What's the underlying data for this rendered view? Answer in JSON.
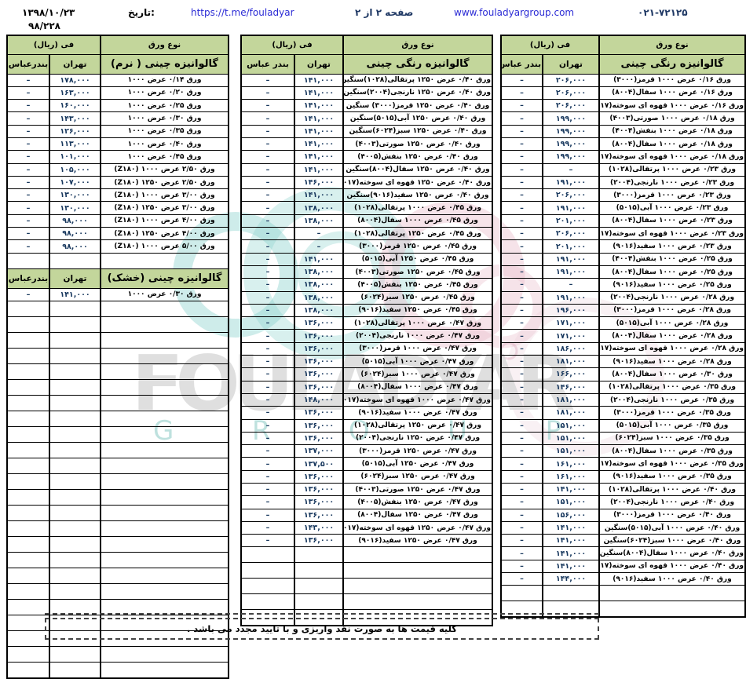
{
  "colors": {
    "header_green": "#c3d69b",
    "link_blue": "#2b2bd5",
    "navy": "#1f3864",
    "price_navy": "#17375d",
    "watermark_teal": "#7fccc7",
    "watermark_pink": "#eabccb",
    "watermark_gray": "#d8d8d8"
  },
  "header": {
    "date_value": "۱۳۹۸/۱۰/۲۳",
    "date_label": "تاریخ:",
    "doc_number": "۹۸/۲۲۸",
    "telegram_url": "https://t.me/fouladyar",
    "page_label": "صفحه ۲ از ۲",
    "website_url": "www.fouladyargroup.com",
    "phone": "۰۲۱-۷۲۱۲۵"
  },
  "watermark": {
    "brand": "FOULADYAR",
    "sub": "G R O U P"
  },
  "columns": {
    "type": "نوع ورق",
    "price": "فی (ریال)"
  },
  "footer": {
    "note": "کلیه قیمت ها به صورت نقد واریزی و با تایید مجدد می باشد ."
  },
  "tables": {
    "right": {
      "trailing_empty": 2,
      "rows": [
        {
          "t": "sec",
          "label": "گالوانیزه رنگی چینی",
          "teh": "تهران",
          "ban": "بندر عباس"
        },
        {
          "t": "d",
          "n": "ورق ۰/۱۶ عرض ۱۰۰۰ قرمز(۳۰۰۰)",
          "p": "۲۰۶,۰۰۰",
          "b": "–"
        },
        {
          "t": "d",
          "n": "ورق ۰/۱۶ عرض ۱۰۰۰ سفال(۸۰۰۴)",
          "p": "۲۰۶,۰۰۰",
          "b": "–"
        },
        {
          "t": "d",
          "n": "ورق ۰/۱۶ عرض ۱۰۰۰ قهوه ای سوخته(۸۰۱۷)",
          "p": "۲۰۶,۰۰۰",
          "b": "–"
        },
        {
          "t": "d",
          "n": "ورق ۰/۱۸ عرض ۱۰۰۰ صورتی(۴۰۰۳)",
          "p": "۱۹۹,۰۰۰",
          "b": "–"
        },
        {
          "t": "d",
          "n": "ورق ۰/۱۸ عرض ۱۰۰۰ بنفش(۴۰۰۴)",
          "p": "۱۹۹,۰۰۰",
          "b": "–"
        },
        {
          "t": "d",
          "n": "ورق ۰/۱۸ عرض ۱۰۰۰ سفال(۸۰۰۴)",
          "p": "۱۹۹,۰۰۰",
          "b": "–"
        },
        {
          "t": "d",
          "n": "ورق ۰/۱۸ عرض ۱۰۰۰ قهوه ای سوخته(۸۰۱۷)",
          "p": "۱۹۹,۰۰۰",
          "b": "–"
        },
        {
          "t": "d",
          "n": "ورق ۰/۲۳ عرض ۱۰۰۰ پرتقالی(۱۰۲۸)",
          "p": "–",
          "b": "–"
        },
        {
          "t": "d",
          "n": "ورق ۰/۲۳ عرض ۱۰۰۰ نارنجی(۲۰۰۴)",
          "p": "۱۹۱,۰۰۰",
          "b": "–"
        },
        {
          "t": "d",
          "n": "ورق ۰/۲۳ عرض ۱۰۰۰ قرمز(۳۰۰۰)",
          "p": "۲۰۶,۰۰۰",
          "b": "–"
        },
        {
          "t": "d",
          "n": "ورق ۰/۲۳ عرض ۱۰۰۰ آبی(۵۰۱۵)",
          "p": "۱۹۱,۰۰۰",
          "b": "–"
        },
        {
          "t": "d",
          "n": "ورق ۰/۲۳ عرض ۱۰۰۰ سفال(۸۰۰۴)",
          "p": "۲۰۱,۰۰۰",
          "b": "–"
        },
        {
          "t": "d",
          "n": "ورق ۰/۲۳ عرض ۱۰۰۰ قهوه ای سوخته(۸۰۱۷)",
          "p": "۲۰۶,۰۰۰",
          "b": "–"
        },
        {
          "t": "d",
          "n": "ورق ۰/۲۳ عرض ۱۰۰۰ سفید(۹۰۱۶)",
          "p": "۲۰۱,۰۰۰",
          "b": "–"
        },
        {
          "t": "d",
          "n": "ورق ۰/۲۵ عرض ۱۰۰۰ بنفش(۴۰۰۴)",
          "p": "۱۹۱,۰۰۰",
          "b": "–"
        },
        {
          "t": "d",
          "n": "ورق ۰/۲۵ عرض ۱۰۰۰ سفال(۸۰۰۴)",
          "p": "۱۹۱,۰۰۰",
          "b": "–"
        },
        {
          "t": "d",
          "n": "ورق ۰/۲۵ عرض ۱۰۰۰ سفید(۹۰۱۶)",
          "p": "–",
          "b": "–"
        },
        {
          "t": "d",
          "n": "ورق ۰/۲۸ عرض ۱۰۰۰ نارنجی(۲۰۰۴)",
          "p": "۱۹۱,۰۰۰",
          "b": "–"
        },
        {
          "t": "d",
          "n": "ورق ۰/۲۸ عرض ۱۰۰۰ قرمز(۳۰۰۰)",
          "p": "۱۹۶,۰۰۰",
          "b": "–"
        },
        {
          "t": "d",
          "n": "ورق ۰/۲۸ عرض ۱۰۰۰ آبی(۵۰۱۵)",
          "p": "۱۷۱,۰۰۰",
          "b": "–"
        },
        {
          "t": "d",
          "n": "ورق ۰/۲۸ عرض ۱۰۰۰ سفال(۸۰۰۴)",
          "p": "۱۷۱,۰۰۰",
          "b": "–"
        },
        {
          "t": "d",
          "n": "ورق ۰/۲۸ عرض ۱۰۰۰ قهوه ای سوخته(۸۰۱۷)",
          "p": "۱۸۶,۰۰۰",
          "b": "–"
        },
        {
          "t": "d",
          "n": "ورق ۰/۲۸ عرض ۱۰۰۰ سفید(۹۰۱۶)",
          "p": "۱۸۱,۰۰۰",
          "b": "–"
        },
        {
          "t": "d",
          "n": "ورق ۰/۳۰ عرض ۱۰۰۰ سفال(۸۰۰۴)",
          "p": "۱۶۶,۰۰۰",
          "b": "–"
        },
        {
          "t": "d",
          "n": "ورق ۰/۳۵ عرض ۱۰۰۰ پرتقالی(۱۰۲۸)",
          "p": "۱۴۶,۰۰۰",
          "b": "–"
        },
        {
          "t": "d",
          "n": "ورق ۰/۳۵ عرض ۱۰۰۰ نارنجی(۲۰۰۴)",
          "p": "۱۸۱,۰۰۰",
          "b": "–"
        },
        {
          "t": "d",
          "n": "ورق ۰/۳۵ عرض ۱۰۰۰ قرمز(۳۰۰۰)",
          "p": "۱۸۱,۰۰۰",
          "b": "–"
        },
        {
          "t": "d",
          "n": "ورق ۰/۳۵ عرض ۱۰۰۰ آبی(۵۰۱۵)",
          "p": "۱۵۱,۰۰۰",
          "b": "–"
        },
        {
          "t": "d",
          "n": "ورق ۰/۳۵ عرض ۱۰۰۰ سبز(۶۰۲۴)",
          "p": "۱۵۱,۰۰۰",
          "b": "–"
        },
        {
          "t": "d",
          "n": "ورق ۰/۳۵ عرض ۱۰۰۰ سفال(۸۰۰۴)",
          "p": "۱۵۱,۰۰۰",
          "b": "–"
        },
        {
          "t": "d",
          "n": "ورق ۰/۳۵ عرض ۱۰۰۰ قهوه ای سوخته(۸۰۱۷)",
          "p": "۱۶۱,۰۰۰",
          "b": "–"
        },
        {
          "t": "d",
          "n": "ورق ۰/۳۵ عرض ۱۰۰۰ سفید(۹۰۱۶)",
          "p": "۱۶۱,۰۰۰",
          "b": "–"
        },
        {
          "t": "d",
          "n": "ورق ۰/۴۰ عرض ۱۰۰۰ پرتقالی(۱۰۲۸)",
          "p": "۱۴۱,۰۰۰",
          "b": "–"
        },
        {
          "t": "d",
          "n": "ورق ۰/۴۰ عرض ۱۰۰۰ نارنجی(۲۰۰۴)",
          "p": "۱۵۱,۰۰۰",
          "b": "–"
        },
        {
          "t": "d",
          "n": "ورق ۰/۴۰ عرض ۱۰۰۰ قرمز(۳۰۰۰)",
          "p": "۱۵۶,۰۰۰",
          "b": "–"
        },
        {
          "t": "d",
          "n": "ورق ۰/۴۰ عرض ۱۰۰۰ آبی(۵۰۱۵)سنگین",
          "p": "۱۴۱,۰۰۰",
          "b": "–"
        },
        {
          "t": "d",
          "n": "ورق ۰/۴۰ عرض ۱۰۰۰ سبز(۶۰۲۴)سنگین",
          "p": "۱۴۱,۰۰۰",
          "b": "–"
        },
        {
          "t": "d",
          "n": "ورق ۰/۴۰ عرض ۱۰۰۰ سفال(۸۰۰۴)سنگین",
          "p": "۱۴۱,۰۰۰",
          "b": "–"
        },
        {
          "t": "d",
          "n": "ورق ۰/۴۰ عرض ۱۰۰۰ قهوه ای سوخته(۸۰۱۷)",
          "p": "۱۴۱,۰۰۰",
          "b": "–"
        },
        {
          "t": "d",
          "n": "ورق ۰/۴۰ عرض ۱۰۰۰ سفید(۹۰۱۶)",
          "p": "۱۴۴,۰۰۰",
          "b": "–"
        }
      ]
    },
    "middle": {
      "trailing_empty": 5,
      "rows": [
        {
          "t": "sec",
          "label": "گالوانیزه رنگی چینی",
          "teh": "تهران",
          "ban": "بندر عباس"
        },
        {
          "t": "d",
          "n": "ورق ۰/۴۰ عرض ۱۲۵۰ پرتقالی(۱۰۲۸)سنگین",
          "p": "۱۴۱,۰۰۰",
          "b": "–"
        },
        {
          "t": "d",
          "n": "ورق ۰/۴۰ عرض ۱۲۵۰ نارنجی(۲۰۰۴)سنگین",
          "p": "۱۴۱,۰۰۰",
          "b": "–"
        },
        {
          "t": "d",
          "n": "ورق ۰/۴۰ عرض ۱۲۵۰ قرمز(۳۰۰۰) سنگین",
          "p": "۱۴۱,۰۰۰",
          "b": "–"
        },
        {
          "t": "d",
          "n": "ورق ۰/۴۰ عرض ۱۲۵۰ آبی(۵۰۱۵)سنگین",
          "p": "۱۴۱,۰۰۰",
          "b": "–"
        },
        {
          "t": "d",
          "n": "ورق ۰/۴۰ عرض ۱۲۵۰ سبز(۶۰۲۴)سنگین",
          "p": "۱۴۱,۰۰۰",
          "b": "–"
        },
        {
          "t": "d",
          "n": "ورق ۰/۴۰ عرض ۱۲۵۰ صورتی(۴۰۰۳)",
          "p": "۱۴۱,۰۰۰",
          "b": "–"
        },
        {
          "t": "d",
          "n": "ورق ۰/۴۰ عرض ۱۲۵۰ بنفش(۴۰۰۵)",
          "p": "۱۴۱,۰۰۰",
          "b": "–"
        },
        {
          "t": "d",
          "n": "ورق ۰/۴۰ عرض ۱۲۵۰ سفال(۸۰۰۴)سنگین",
          "p": "۱۴۱,۰۰۰",
          "b": "–"
        },
        {
          "t": "d",
          "n": "ورق ۰/۴۰ عرض ۱۲۵۰ قهوه ای سوخته(۸۰۱۷)",
          "p": "۱۴۶,۰۰۰",
          "b": "–"
        },
        {
          "t": "d",
          "n": "ورق ۰/۴۰ عرض ۱۲۵۰ سفید(۹۰۱۶)سنگین",
          "p": "۱۴۱,۰۰۰",
          "b": "–"
        },
        {
          "t": "d",
          "n": "ورق ۰/۴۵ عرض ۱۰۰۰ پرتقالی(۱۰۲۸)",
          "p": "۱۳۸,۰۰۰",
          "b": "–"
        },
        {
          "t": "d",
          "n": "ورق ۰/۴۵ عرض ۱۰۰۰ سفال(۸۰۰۴)",
          "p": "۱۳۸,۰۰۰",
          "b": "–"
        },
        {
          "t": "d",
          "n": "ورق ۰/۴۵ عرض ۱۲۵۰ پرتقالی(۱۰۲۸)",
          "p": "–",
          "b": "–"
        },
        {
          "t": "d",
          "n": "ورق ۰/۴۵ عرض ۱۲۵۰ قرمز(۳۰۰۰)",
          "p": "–",
          "b": "–"
        },
        {
          "t": "d",
          "n": "ورق ۰/۴۵ عرض ۱۲۵۰ آبی(۵۰۱۵)",
          "p": "۱۴۱,۰۰۰",
          "b": "–"
        },
        {
          "t": "d",
          "n": "ورق ۰/۴۵ عرض ۱۲۵۰ صورتی(۴۰۰۳)",
          "p": "۱۳۸,۰۰۰",
          "b": "–"
        },
        {
          "t": "d",
          "n": "ورق ۰/۴۵ عرض ۱۲۵۰ بنفش(۴۰۰۵)",
          "p": "۱۳۸,۰۰۰",
          "b": "–"
        },
        {
          "t": "d",
          "n": "ورق ۰/۴۵ عرض ۱۲۵۰ سبز(۶۰۲۴)",
          "p": "۱۳۸,۰۰۰",
          "b": "–"
        },
        {
          "t": "d",
          "n": "ورق ۰/۴۵ عرض ۱۲۵۰ سفید(۹۰۱۶)",
          "p": "۱۳۸,۰۰۰",
          "b": "–"
        },
        {
          "t": "d",
          "n": "ورق ۰/۴۷ عرض ۱۰۰۰ پرتقالی(۱۰۲۸)",
          "p": "۱۳۶,۰۰۰",
          "b": "–"
        },
        {
          "t": "d",
          "n": "ورق ۰/۴۷ عرض ۱۰۰۰ نارنجی(۲۰۰۴)",
          "p": "۱۳۶,۰۰۰",
          "b": "–"
        },
        {
          "t": "d",
          "n": "ورق ۰/۴۷ عرض ۱۰۰۰ قرمز(۳۰۰۰)",
          "p": "۱۳۶,۰۰۰",
          "b": "–"
        },
        {
          "t": "d",
          "n": "ورق ۰/۴۷ عرض ۱۰۰۰ آبی(۵۰۱۵)",
          "p": "۱۳۶,۰۰۰",
          "b": "–"
        },
        {
          "t": "d",
          "n": "ورق ۰/۴۷ عرض ۱۰۰۰ سبز(۶۰۲۴)",
          "p": "۱۳۶,۰۰۰",
          "b": "–"
        },
        {
          "t": "d",
          "n": "ورق ۰/۴۷ عرض ۱۰۰۰ سفال(۸۰۰۴)",
          "p": "۱۳۶,۰۰۰",
          "b": "–"
        },
        {
          "t": "d",
          "n": "ورق ۰/۴۷ عرض ۱۰۰۰ قهوه ای سوخته(۸۰۱۷)",
          "p": "۱۴۸,۰۰۰",
          "b": "–"
        },
        {
          "t": "d",
          "n": "ورق ۰/۴۷ عرض ۱۰۰۰ سفید(۹۰۱۶)",
          "p": "۱۳۶,۰۰۰",
          "b": "–"
        },
        {
          "t": "d",
          "n": "ورق ۰/۴۷ عرض ۱۲۵۰ پرتقالی(۱۰۲۸)",
          "p": "۱۳۶,۰۰۰",
          "b": "–"
        },
        {
          "t": "d",
          "n": "ورق ۰/۴۷ عرض ۱۲۵۰ نارنجی(۲۰۰۴)",
          "p": "۱۳۶,۰۰۰",
          "b": "–"
        },
        {
          "t": "d",
          "n": "ورق ۰/۴۷ عرض ۱۲۵۰ قرمز(۳۰۰۰)",
          "p": "۱۳۷,۰۰۰",
          "b": "–"
        },
        {
          "t": "d",
          "n": "ورق ۰/۴۷ عرض ۱۲۵۰ آبی(۵۰۱۵)",
          "p": "۱۳۷,۵۰۰",
          "b": "–"
        },
        {
          "t": "d",
          "n": "ورق ۰/۴۷ عرض ۱۲۵۰ سبز(۶۰۲۴)",
          "p": "۱۳۶,۰۰۰",
          "b": "–"
        },
        {
          "t": "d",
          "n": "ورق ۰/۴۷ عرض ۱۲۵۰ صورتی(۴۰۰۳)",
          "p": "۱۳۶,۰۰۰",
          "b": "–"
        },
        {
          "t": "d",
          "n": "ورق ۰/۴۷ عرض ۱۲۵۰ بنفش(۴۰۰۵)",
          "p": "۱۳۶,۰۰۰",
          "b": "–"
        },
        {
          "t": "d",
          "n": "ورق ۰/۴۷ عرض ۱۲۵۰ سفال(۸۰۰۴)",
          "p": "۱۳۶,۰۰۰",
          "b": "–"
        },
        {
          "t": "d",
          "n": "ورق ۰/۴۷ عرض ۱۲۵۰ قهوه ای سوخته(۸۰۱۷)",
          "p": "۱۴۳,۰۰۰",
          "b": "–"
        },
        {
          "t": "d",
          "n": "ورق ۰/۴۷ عرض ۱۲۵۰ سفید(۹۰۱۶)",
          "p": "۱۳۶,۰۰۰",
          "b": "–"
        }
      ]
    },
    "left": {
      "trailing_empty": 24,
      "rows": [
        {
          "t": "sec",
          "label": "گالوانیزه چینی ( نرم)",
          "teh": "تهران",
          "ban": "بندرعباس"
        },
        {
          "t": "d",
          "n": "ورق ۰/۱۴ عرض ۱۰۰۰",
          "p": "۱۷۸,۰۰۰",
          "b": "–"
        },
        {
          "t": "d",
          "n": "ورق ۰/۲۰ عرض ۱۰۰۰",
          "p": "۱۶۳,۰۰۰",
          "b": "–"
        },
        {
          "t": "d",
          "n": "ورق ۰/۲۵ عرض ۱۰۰۰",
          "p": "۱۶۰,۰۰۰",
          "b": "–"
        },
        {
          "t": "d",
          "n": "ورق ۰/۳۰ عرض ۱۰۰۰",
          "p": "۱۴۳,۰۰۰",
          "b": "–"
        },
        {
          "t": "d",
          "n": "ورق ۰/۳۵ عرض ۱۰۰۰",
          "p": "۱۲۶,۰۰۰",
          "b": "–"
        },
        {
          "t": "d",
          "n": "ورق ۰/۴۰ عرض ۱۰۰۰",
          "p": "۱۱۳,۰۰۰",
          "b": "–"
        },
        {
          "t": "d",
          "n": "ورق ۰/۴۵ عرض ۱۰۰۰",
          "p": "۱۰۱,۰۰۰",
          "b": "–"
        },
        {
          "t": "d",
          "n": "ورق ۲/۵۰ عرض ۱۰۰۰ (Z۱۸۰)",
          "p": "۱۰۵,۰۰۰",
          "b": "–"
        },
        {
          "t": "d",
          "n": "ورق ۲/۵۰ عرض ۱۲۵۰ (Z۱۸۰)",
          "p": "۱۰۷,۰۰۰",
          "b": "–"
        },
        {
          "t": "d",
          "n": "ورق ۳/۰۰ عرض ۱۰۰۰ (Z۱۸۰)",
          "p": "۱۳۰,۰۰۰",
          "b": "–"
        },
        {
          "t": "d",
          "n": "ورق ۳/۰۰ عرض ۱۲۵۰ (Z۱۸۰)",
          "p": "۱۳۰,۰۰۰",
          "b": "–"
        },
        {
          "t": "d",
          "n": "ورق ۴/۰۰ عرض ۱۰۰۰ (Z۱۸۰)",
          "p": "۹۸,۰۰۰",
          "b": "–"
        },
        {
          "t": "d",
          "n": "ورق ۴/۰۰ عرض ۱۲۵۰ (Z۱۸۰)",
          "p": "۹۸,۰۰۰",
          "b": "–"
        },
        {
          "t": "d",
          "n": "ورق ۵/۰۰ عرض ۱۰۰۰ (Z۱۸۰)",
          "p": "۹۸,۰۰۰",
          "b": "–"
        },
        {
          "t": "e"
        },
        {
          "t": "sec",
          "label": "گالوانیزه چینی (خشک)",
          "teh": "تهران",
          "ban": "بندرعباس"
        },
        {
          "t": "d",
          "n": "ورق ۰/۳۰ عرض ۱۰۰۰",
          "p": "۱۴۱,۰۰۰",
          "b": "–"
        }
      ]
    }
  }
}
